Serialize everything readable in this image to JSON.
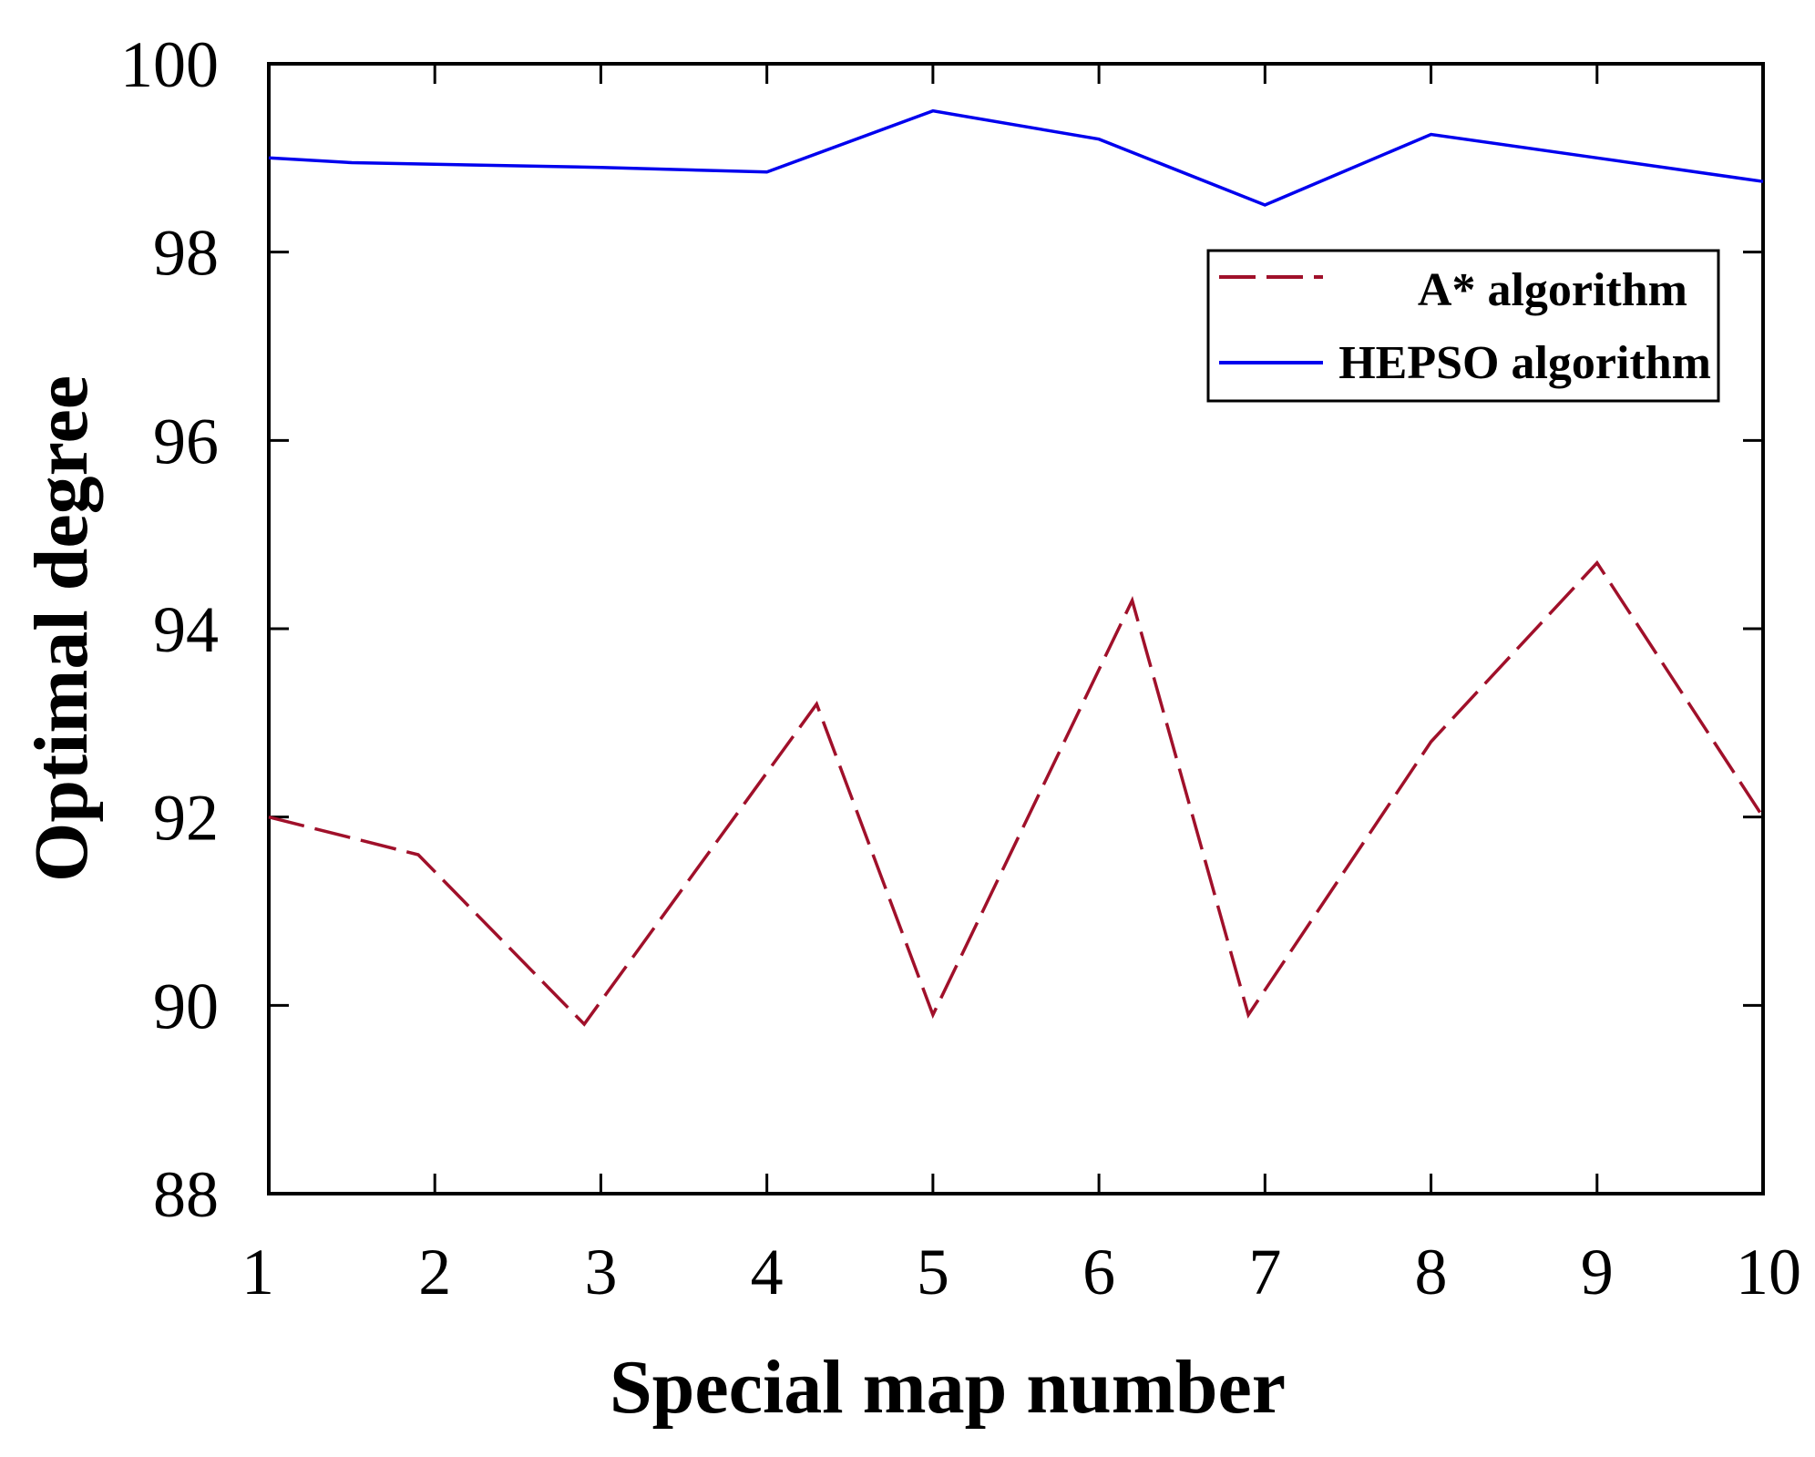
{
  "chart_data": {
    "type": "line",
    "title": "",
    "xlabel": "Special map number",
    "ylabel": "Optimal degree",
    "xlim": [
      1,
      10
    ],
    "ylim": [
      88,
      100
    ],
    "x_ticks": [
      "1",
      "2",
      "3",
      "4",
      "5",
      "6",
      "7",
      "8",
      "9",
      "10"
    ],
    "y_ticks": [
      "88",
      "90",
      "92",
      "94",
      "96",
      "98",
      "100"
    ],
    "grid": false,
    "legend_position": "top-right",
    "series": [
      {
        "name": "A* algorithm",
        "color": "#a0102a",
        "dash": "dashed",
        "points": [
          [
            1.0,
            92.0
          ],
          [
            1.9,
            91.6
          ],
          [
            2.9,
            89.8
          ],
          [
            4.3,
            93.2
          ],
          [
            5.0,
            89.9
          ],
          [
            6.2,
            94.3
          ],
          [
            6.9,
            89.9
          ],
          [
            8.0,
            92.8
          ],
          [
            9.0,
            94.7
          ],
          [
            10.0,
            92.0
          ]
        ]
      },
      {
        "name": "HEPSO algorithm",
        "color": "#0000ee",
        "dash": "solid",
        "points": [
          [
            1.0,
            99.0
          ],
          [
            1.5,
            98.95
          ],
          [
            3.0,
            98.9
          ],
          [
            4.0,
            98.85
          ],
          [
            5.0,
            99.5
          ],
          [
            6.0,
            99.2
          ],
          [
            7.0,
            98.5
          ],
          [
            8.0,
            99.25
          ],
          [
            9.0,
            99.0
          ],
          [
            10.0,
            98.75
          ]
        ]
      }
    ]
  }
}
